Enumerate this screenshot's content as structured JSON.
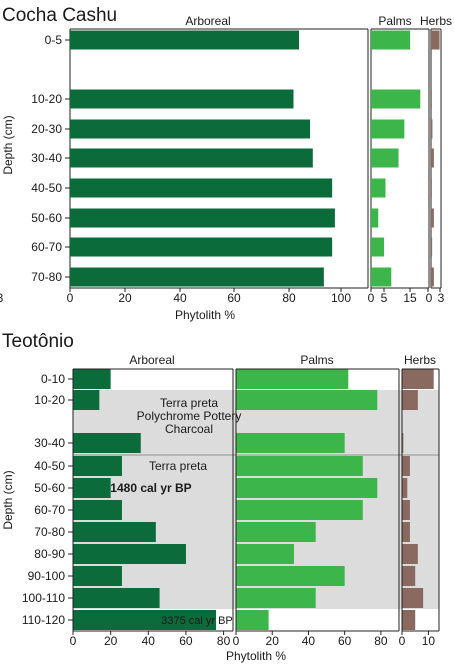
{
  "colors": {
    "arboreal": "#0b6b3a",
    "palms": "#3cb54a",
    "herbs": "#8a6a5e",
    "shade": "#dcdcdc",
    "axis": "#222222"
  },
  "chart_data": [
    {
      "type": "bar",
      "orientation": "horizontal",
      "title": "Cocha Cashu",
      "ylabel": "Depth (cm)",
      "xlabel": "Phytolith %",
      "categories": [
        "0-5",
        "10-20",
        "20-30",
        "30-40",
        "40-50",
        "50-60",
        "60-70",
        "70-80"
      ],
      "series": [
        {
          "name": "Arboreal",
          "values": [
            83,
            81,
            87,
            88,
            95,
            96,
            95,
            92
          ],
          "xlim": [
            0,
            108
          ],
          "ticks": [
            "0",
            "20",
            "40",
            "60",
            "80",
            "100"
          ]
        },
        {
          "name": "Palms",
          "values": [
            13.5,
            17,
            11.5,
            9.5,
            5,
            2.5,
            4.5,
            7
          ],
          "xlim": [
            0,
            20
          ],
          "ticks": [
            "0",
            "5",
            "15"
          ]
        },
        {
          "name": "Herbs",
          "values": [
            3,
            0.3,
            0.5,
            1,
            0.3,
            1,
            0.4,
            1
          ],
          "xlim": [
            0,
            3.5
          ],
          "ticks": [
            "0",
            "3",
            "3"
          ]
        }
      ],
      "grid": false
    },
    {
      "type": "bar",
      "orientation": "horizontal",
      "title": "Teotônio",
      "ylabel": "Depth (cm)",
      "xlabel": "Phytolith %",
      "categories": [
        "0-10",
        "10-20",
        "30-40",
        "40-50",
        "50-60",
        "60-70",
        "70-80",
        "80-90",
        "90-100",
        "100-110",
        "110-120"
      ],
      "series": [
        {
          "name": "Arboreal",
          "values": [
            20,
            14,
            36,
            26,
            20,
            26,
            44,
            60,
            26,
            46,
            76
          ],
          "xlim": [
            0,
            85
          ],
          "ticks": [
            "0",
            "20",
            "40",
            "60",
            "80"
          ]
        },
        {
          "name": "Palms",
          "values": [
            62,
            78,
            60,
            70,
            78,
            70,
            44,
            32,
            60,
            44,
            18
          ],
          "xlim": [
            0,
            90
          ],
          "ticks": [
            "0",
            "20",
            "40",
            "60",
            "80"
          ]
        },
        {
          "name": "Herbs",
          "values": [
            12,
            6,
            0.5,
            3,
            2,
            3,
            3,
            6,
            5,
            8,
            5
          ],
          "xlim": [
            0,
            14
          ],
          "ticks": [
            "0",
            "10"
          ]
        }
      ],
      "annotations": [
        "Terra preta",
        "Polychrome Pottery",
        "Charcoal",
        "Terra preta",
        "1480 cal yr BP",
        "3375 cal yr BP"
      ],
      "grid": false
    }
  ]
}
